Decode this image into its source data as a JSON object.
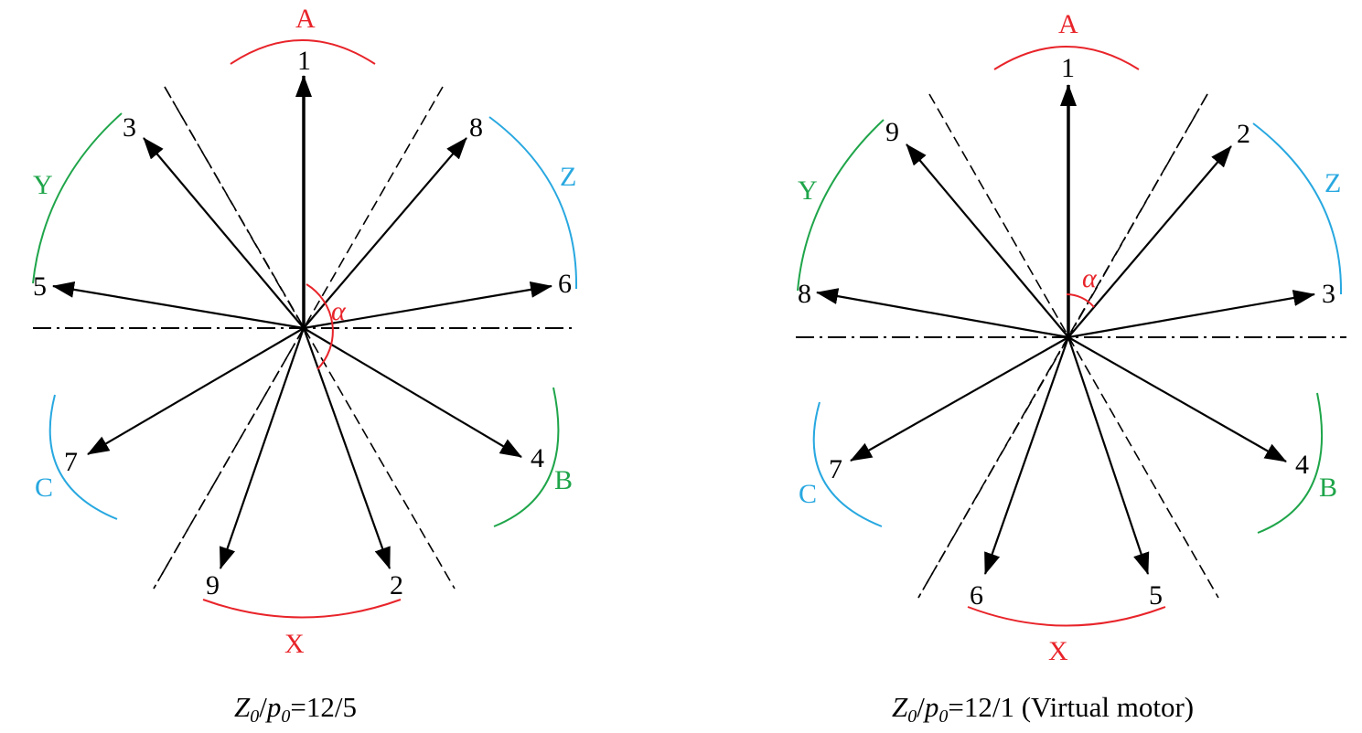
{
  "colors": {
    "red": "#e8242a",
    "green": "#1fa54a",
    "blue": "#28a8e0",
    "black": "#000000"
  },
  "diagrams": [
    {
      "caption": {
        "z": "Z",
        "z_sub": "0",
        "slash": "/",
        "p": "p",
        "p_sub": "0",
        "rest": "=12/5"
      },
      "alpha_label": "α",
      "vector_labels": [
        "1",
        "3",
        "5",
        "7",
        "9",
        "2",
        "4",
        "6",
        "8"
      ],
      "phase_labels": [
        "A",
        "B",
        "C",
        "X",
        "Y",
        "Z"
      ]
    },
    {
      "caption": {
        "z": "Z",
        "z_sub": "0",
        "slash": "/",
        "p": "p",
        "p_sub": "0",
        "rest": "=12/1 (Virtual motor)"
      },
      "alpha_label": "α",
      "vector_labels": [
        "1",
        "9",
        "8",
        "7",
        "6",
        "5",
        "4",
        "3",
        "2"
      ],
      "phase_labels": [
        "A",
        "B",
        "C",
        "X",
        "Y",
        "Z"
      ]
    }
  ]
}
